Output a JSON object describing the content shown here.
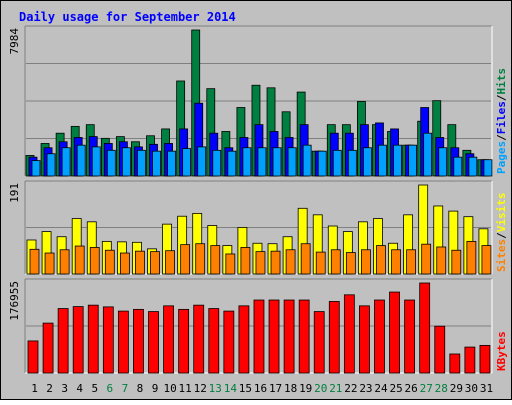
{
  "chart_data": {
    "type": "bar",
    "title": "Daily usage for September 2014",
    "x": [
      "1",
      "2",
      "3",
      "4",
      "5",
      "6",
      "7",
      "8",
      "9",
      "10",
      "11",
      "12",
      "13",
      "14",
      "15",
      "16",
      "17",
      "18",
      "19",
      "20",
      "21",
      "22",
      "23",
      "24",
      "25",
      "26",
      "27",
      "28",
      "29",
      "30",
      "31"
    ],
    "weekend_days": [
      6,
      7,
      13,
      14,
      20,
      21,
      27,
      28
    ],
    "panels": [
      {
        "id": "top",
        "ymax_label": "7984",
        "ylim": [
          0,
          7984
        ],
        "grid": true,
        "legend": [
          {
            "text": "Pages",
            "color": "#00a0ff"
          },
          {
            "text": "/",
            "color": "#000000"
          },
          {
            "text": "Files",
            "color": "#0000ff"
          },
          {
            "text": "/",
            "color": "#000000"
          },
          {
            "text": "Hits",
            "color": "#008040"
          }
        ],
        "series": [
          {
            "name": "Hits",
            "color": "#008040",
            "values": [
              1124,
              1779,
              2340,
              2714,
              2808,
              2060,
              2154,
              1873,
              2201,
              2574,
              5196,
              7984,
              4776,
              2434,
              3745,
              4963,
              4823,
              3512,
              4589,
              1358,
              2808,
              2808,
              4073,
              2808,
              2434,
              1686,
              2995,
              4120,
              2808,
              1405,
              890
            ]
          },
          {
            "name": "Files",
            "color": "#0000ff",
            "values": [
              1030,
              1545,
              1873,
              2107,
              2154,
              1779,
              1873,
              1592,
              1733,
              1779,
              2574,
              3979,
              2340,
              1545,
              2106,
              2808,
              2434,
              2106,
              2808,
              1358,
              2340,
              2340,
              2808,
              2902,
              2574,
              1686,
              3745,
              2106,
              1545,
              1217,
              890
            ]
          },
          {
            "name": "Pages",
            "color": "#00a0ff",
            "values": [
              843,
              1217,
              1545,
              1686,
              1592,
              1405,
              1545,
              1405,
              1358,
              1358,
              1498,
              1592,
              1405,
              1358,
              1545,
              1545,
              1545,
              1545,
              1686,
              1358,
              1405,
              1405,
              1545,
              1686,
              1686,
              1686,
              2340,
              1545,
              1030,
              1030,
              890
            ]
          }
        ]
      },
      {
        "id": "mid",
        "ymax_label": "191",
        "ylim": [
          0,
          191
        ],
        "grid": true,
        "legend": [
          {
            "text": "Sites",
            "color": "#ff8000"
          },
          {
            "text": "/",
            "color": "#000000"
          },
          {
            "text": "Visits",
            "color": "#ffff00"
          }
        ],
        "series": [
          {
            "name": "Visits",
            "color": "#ffff00",
            "values": [
              73,
              91,
              80,
              119,
              112,
              70,
              69,
              68,
              54,
              107,
              124,
              130,
              104,
              61,
              100,
              66,
              65,
              80,
              141,
              127,
              103,
              91,
              112,
              119,
              66,
              127,
              191,
              146,
              135,
              123,
              97
            ]
          },
          {
            "name": "Sites",
            "color": "#ff8000",
            "values": [
              53,
              45,
              52,
              60,
              57,
              51,
              45,
              49,
              48,
              50,
              63,
              65,
              61,
              43,
              57,
              48,
              49,
              52,
              65,
              47,
              52,
              46,
              52,
              61,
              52,
              52,
              64,
              58,
              51,
              70,
              61
            ]
          }
        ]
      },
      {
        "id": "bot",
        "ymax_label": "176955",
        "ylim": [
          0,
          176955
        ],
        "grid": true,
        "legend": [
          {
            "text": "KBytes",
            "color": "#ff0000"
          }
        ],
        "series": [
          {
            "name": "KBytes",
            "color": "#ff0000",
            "values": [
              63054,
              98106,
              126726,
              130596,
              133404,
              129996,
              121716,
              125112,
              120804,
              132048,
              125112,
              133404,
              126726,
              121716,
              132048,
              143484,
              143484,
              143484,
              143484,
              120804,
              140676,
              153738,
              132048,
              143484,
              159174,
              143484,
              176955,
              92034,
              37386,
              50976,
              54294
            ]
          }
        ]
      }
    ]
  }
}
